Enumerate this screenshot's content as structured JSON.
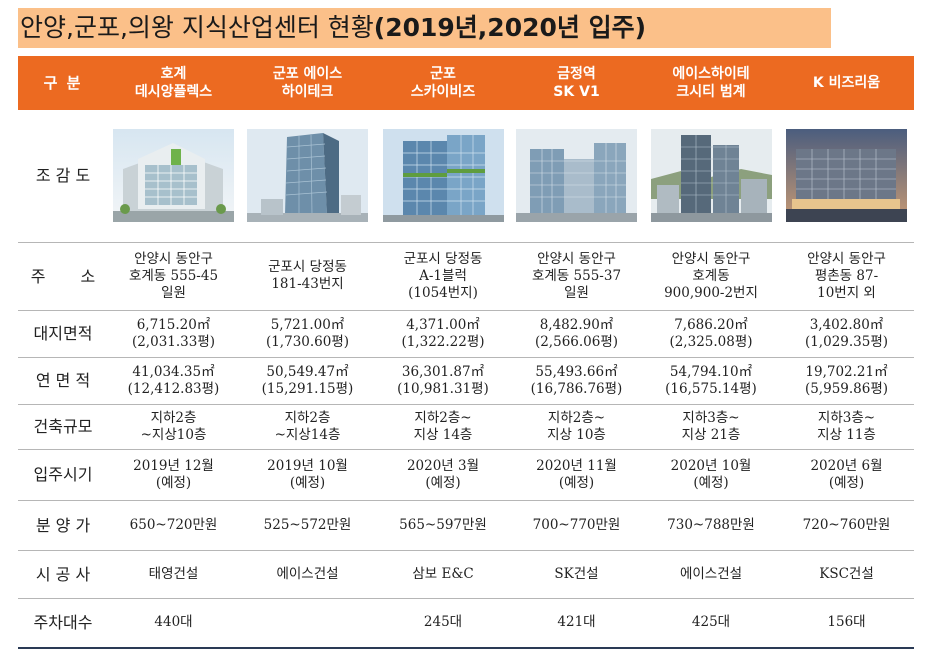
{
  "title": {
    "normal": "안양,군포,의왕 지식산업센터 현황",
    "bold": "(2019년,2020년 입주)"
  },
  "header": {
    "corner": "구 분",
    "columns": [
      [
        "호계",
        "데시앙플렉스"
      ],
      [
        "군포 에이스",
        "하이테크"
      ],
      [
        "군포",
        "스카이비즈"
      ],
      [
        "금정역",
        "SK V1"
      ],
      [
        "에이스하이테",
        "크시티 범계"
      ],
      [
        "K 비즈리움"
      ]
    ]
  },
  "row_labels": {
    "image": "조 감 도",
    "address": "주 소",
    "land_area": "대지면적",
    "floor_area": "연 면 적",
    "scale": "건축규모",
    "move_in": "입주시기",
    "price": "분 양 가",
    "builder": "시 공 사",
    "parking": "주차대수"
  },
  "rows": {
    "address": [
      [
        "안양시 동안구",
        "호계동 555-45",
        "일원"
      ],
      [
        "군포시 당정동",
        "181-43번지"
      ],
      [
        "군포시 당정동",
        "A-1블럭",
        "(1054번지)"
      ],
      [
        "안양시 동안구",
        "호계동 555-37",
        "일원"
      ],
      [
        "안양시 동안구",
        "호계동",
        "900,900-2번지"
      ],
      [
        "안양시 동안구",
        "평촌동 87-",
        "10번지 외"
      ]
    ],
    "land_area": [
      [
        "6,715.20㎡",
        "(2,031.33평)"
      ],
      [
        "5,721.00㎡",
        "(1,730.60평)"
      ],
      [
        "4,371.00㎡",
        "(1,322.22평)"
      ],
      [
        "8,482.90㎡",
        "(2,566.06평)"
      ],
      [
        "7,686.20㎡",
        "(2,325.08평)"
      ],
      [
        "3,402.80㎡",
        "(1,029.35평)"
      ]
    ],
    "floor_area": [
      [
        "41,034.35㎡",
        "(12,412.83평)"
      ],
      [
        "50,549.47㎡",
        "(15,291.15평)"
      ],
      [
        "36,301.87㎡",
        "(10,981.31평)"
      ],
      [
        "55,493.66㎡",
        "(16,786.76평)"
      ],
      [
        "54,794.10㎡",
        "(16,575.14평)"
      ],
      [
        "19,702.21㎡",
        "(5,959.86평)"
      ]
    ],
    "scale": [
      [
        "지하2층",
        "~지상10층"
      ],
      [
        "지하2층",
        "~지상14층"
      ],
      [
        "지하2층~",
        "지상 14층"
      ],
      [
        "지하2층~",
        "지상 10층"
      ],
      [
        "지하3층~",
        "지상 21층"
      ],
      [
        "지하3층~",
        "지상 11층"
      ]
    ],
    "move_in": [
      [
        "2019년 12월",
        "(예정)"
      ],
      [
        "2019년 10월",
        "(예정)"
      ],
      [
        "2020년 3월",
        "(예정)"
      ],
      [
        "2020년 11월",
        "(예정)"
      ],
      [
        "2020년 10월",
        "(예정)"
      ],
      [
        "2020년 6월",
        "(예정)"
      ]
    ],
    "price": [
      "650~720만원",
      "525~572만원",
      "565~597만원",
      "700~770만원",
      "730~788만원",
      "720~760만원"
    ],
    "builder": [
      "태영건설",
      "에이스건설",
      "삼보 E&C",
      "SK건설",
      "에이스건설",
      "KSC건설"
    ],
    "parking": [
      "440대",
      "",
      "245대",
      "421대",
      "425대",
      "156대"
    ]
  }
}
